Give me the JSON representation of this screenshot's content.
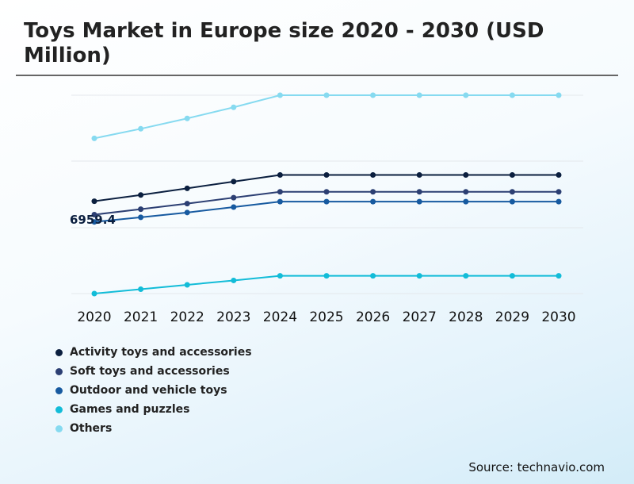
{
  "chart_data": {
    "type": "line",
    "title": "Toys Market in Europe size 2020 - 2030 (USD Million)",
    "x": [
      "2020",
      "2021",
      "2022",
      "2023",
      "2024",
      "2025",
      "2026",
      "2027",
      "2028",
      "2029",
      "2030"
    ],
    "annotation": "6959.4",
    "grid": true,
    "ylim": [
      0,
      16000
    ],
    "series": [
      {
        "name": "Activity toys and accessories",
        "color": "#0b1f3f",
        "values": [
          6959.4,
          7430,
          7930,
          8440,
          8940,
          8940,
          8940,
          8940,
          8940,
          8940,
          8940
        ]
      },
      {
        "name": "Soft toys and accessories",
        "color": "#2c3f73",
        "values": [
          5950,
          6360,
          6780,
          7230,
          7670,
          7670,
          7670,
          7670,
          7670,
          7670,
          7670
        ]
      },
      {
        "name": "Outdoor and vehicle toys",
        "color": "#175aa0",
        "values": [
          5400,
          5750,
          6110,
          6520,
          6930,
          6930,
          6930,
          6930,
          6930,
          6930,
          6930
        ]
      },
      {
        "name": "Games and puzzles",
        "color": "#12bcd8",
        "values": [
          0,
          330,
          660,
          990,
          1340,
          1340,
          1340,
          1340,
          1340,
          1340,
          1340
        ]
      },
      {
        "name": "Others",
        "color": "#86daf0",
        "values": [
          11700,
          12420,
          13200,
          14040,
          14950,
          14950,
          14950,
          14950,
          14950,
          14950,
          14950
        ]
      }
    ]
  },
  "source": "Source: technavio.com"
}
